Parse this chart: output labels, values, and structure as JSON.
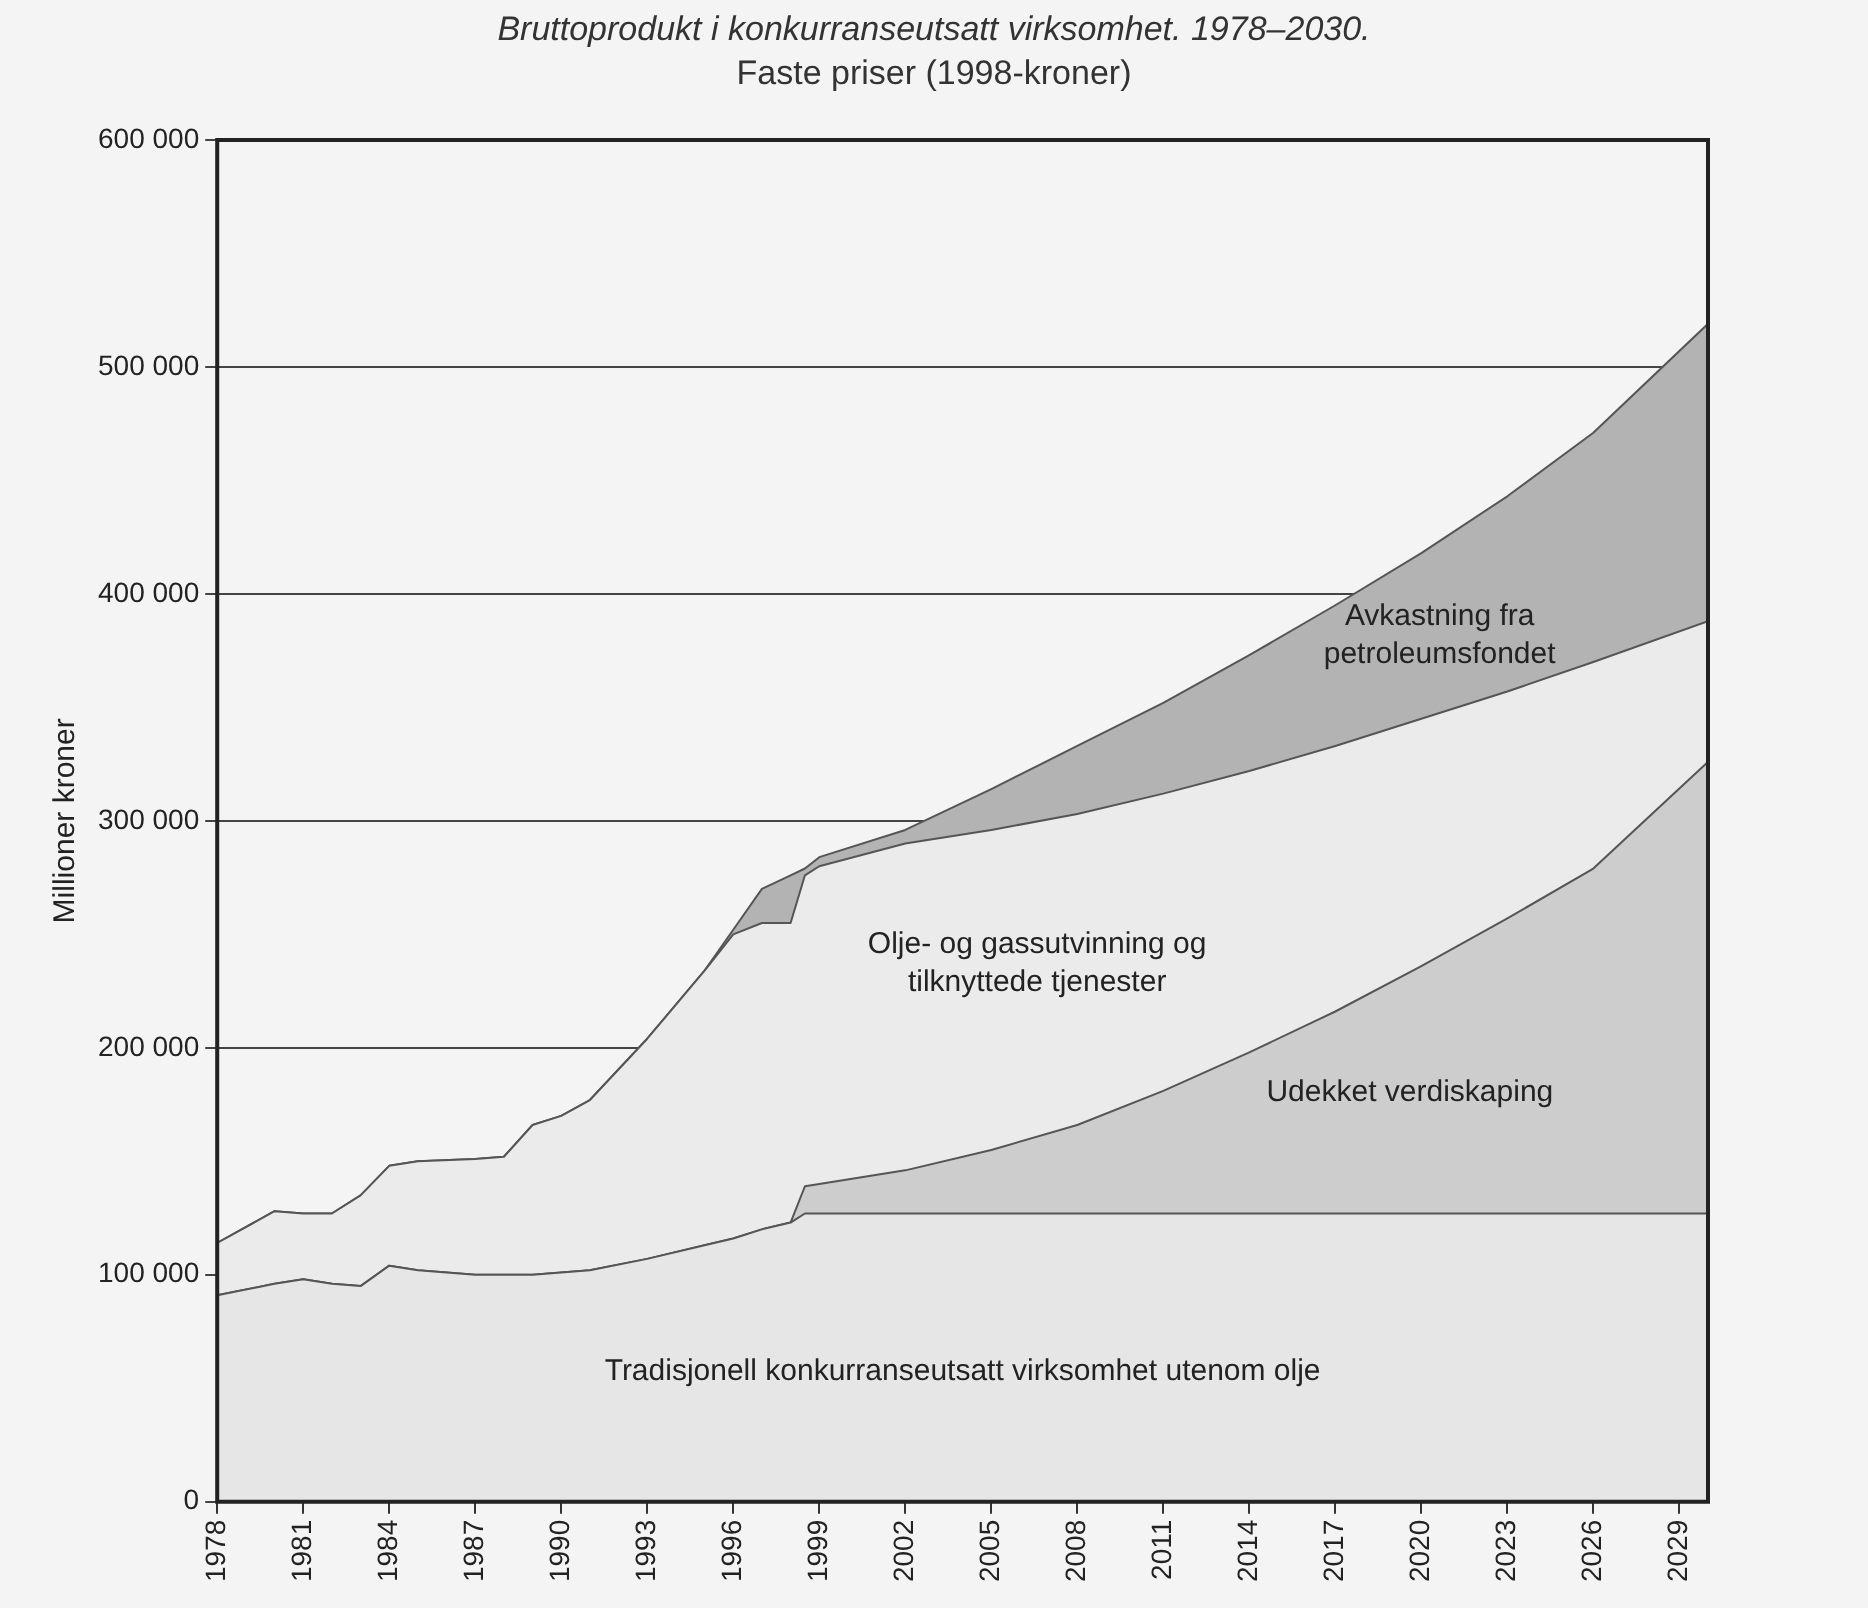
{
  "chart_data": {
    "type": "area",
    "stacked": true,
    "title": "Bruttoprodukt i konkurranseutsatt virksomhet. 1978–2030.",
    "subtitle": "Faste priser (1998-kroner)",
    "ylabel": "Millioner kroner",
    "x": [
      1978,
      1980,
      1981,
      1982,
      1983,
      1984,
      1985,
      1987,
      1988,
      1989,
      1990,
      1991,
      1993,
      1995,
      1996,
      1997,
      1998,
      1998.5,
      1999,
      2002,
      2005,
      2008,
      2011,
      2014,
      2017,
      2020,
      2023,
      2026,
      2030
    ],
    "series": [
      {
        "name": "Tradisjonell konkurranseutsatt virksomhet utenom olje",
        "color": "#e6e6e6",
        "values": [
          91000,
          96000,
          98000,
          96000,
          95000,
          104000,
          102000,
          100000,
          100000,
          100000,
          101000,
          102000,
          107000,
          113000,
          116000,
          120000,
          123000,
          127000,
          127000,
          127000,
          127000,
          127000,
          127000,
          127000,
          127000,
          127000,
          127000,
          127000,
          127000
        ]
      },
      {
        "name": "Udekket verdiskaping",
        "color": "#cdcdcd",
        "values": [
          0,
          0,
          0,
          0,
          0,
          0,
          0,
          0,
          0,
          0,
          0,
          0,
          0,
          0,
          0,
          0,
          0,
          12000,
          13000,
          19000,
          28000,
          39000,
          54000,
          71000,
          89000,
          109000,
          130000,
          152000,
          199000
        ]
      },
      {
        "name": "Olje- og gassutvinning og tilknyttede tjenester",
        "color": "#ebebeb",
        "values": [
          23000,
          32000,
          29000,
          31000,
          40000,
          44000,
          48000,
          51000,
          52000,
          66000,
          69000,
          75000,
          97000,
          121000,
          134000,
          135000,
          132000,
          137000,
          140000,
          144000,
          141000,
          137000,
          131000,
          124000,
          117000,
          109000,
          100000,
          91000,
          62000
        ]
      },
      {
        "name": "Avkastning fra petroleumsfondet",
        "color": "#b3b3b3",
        "values": [
          0,
          0,
          0,
          0,
          0,
          0,
          0,
          0,
          0,
          0,
          0,
          0,
          0,
          0,
          2000,
          15000,
          21000,
          3000,
          4000,
          6000,
          18000,
          30000,
          40000,
          51000,
          62000,
          73000,
          86000,
          101000,
          131000
        ]
      }
    ],
    "xlim": [
      1978,
      2030
    ],
    "xticks": [
      1978,
      1981,
      1984,
      1987,
      1990,
      1993,
      1996,
      1999,
      2002,
      2005,
      2008,
      2011,
      2014,
      2017,
      2020,
      2023,
      2026,
      2029
    ],
    "ylim": [
      0,
      600000
    ],
    "yticks": [
      {
        "value": 0,
        "label": "0"
      },
      {
        "value": 100000,
        "label": "100 000"
      },
      {
        "value": 200000,
        "label": "200 000"
      },
      {
        "value": 300000,
        "label": "300 000"
      },
      {
        "value": 400000,
        "label": "400 000"
      },
      {
        "value": 500000,
        "label": "500 000"
      },
      {
        "value": 600000,
        "label": "600 000"
      }
    ],
    "grid": "y",
    "legend": false
  }
}
